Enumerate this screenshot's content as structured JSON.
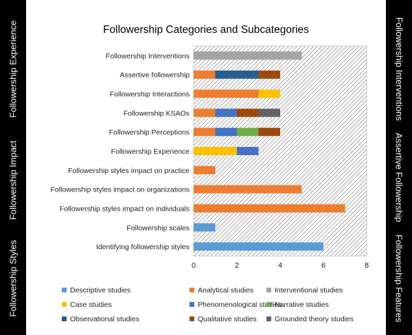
{
  "left_sidebar": {
    "labels": [
      {
        "text": "Followership Experience",
        "center_y": 100
      },
      {
        "text": "Followership Impact",
        "center_y": 262
      },
      {
        "text": "Followership Styles",
        "center_y": 405
      }
    ]
  },
  "right_sidebar": {
    "labels": [
      {
        "text": "Followership Interventions",
        "center_y": 100
      },
      {
        "text": "Assertive Followership",
        "center_y": 258
      },
      {
        "text": "Followership Features",
        "center_y": 405
      }
    ]
  },
  "chart_data": {
    "type": "bar",
    "orientation": "horizontal",
    "stacked": true,
    "title": "Followership Categories and Subcategories",
    "xlabel": "",
    "ylabel": "",
    "xlim": [
      0,
      8
    ],
    "xticks": [
      0,
      2,
      4,
      6,
      8
    ],
    "grid": false,
    "legend_position": "bottom",
    "categories": [
      "Followership Interventions",
      "Assertive followership",
      "Followership Interactions",
      "Followership KSAOs",
      "Followership Perceptions",
      "Followership Experience",
      "Followership styles impact on practice",
      "Followership styles impact on organizations",
      "Followership styles impact on individuals",
      "Followership scales",
      "Identifying followership styles"
    ],
    "series": [
      {
        "name": "Descriptive studies",
        "color": "#5b9bd5",
        "values": [
          0,
          0,
          0,
          0,
          0,
          0,
          0,
          0,
          0,
          1,
          6
        ]
      },
      {
        "name": "Analytical studies",
        "color": "#ed7d31",
        "values": [
          0,
          1,
          3,
          1,
          1,
          0,
          1,
          5,
          7,
          0,
          0
        ]
      },
      {
        "name": "Interventional studies",
        "color": "#a5a5a5",
        "values": [
          5,
          0,
          0,
          0,
          0,
          0,
          0,
          0,
          0,
          0,
          0
        ]
      },
      {
        "name": "Case studies",
        "color": "#ffc000",
        "values": [
          0,
          0,
          1,
          0,
          0,
          2,
          0,
          0,
          0,
          0,
          0
        ]
      },
      {
        "name": "Phenomenological studies",
        "color": "#4472c4",
        "values": [
          0,
          0,
          0,
          1,
          1,
          1,
          0,
          0,
          0,
          0,
          0
        ]
      },
      {
        "name": "Narrative studies",
        "color": "#70ad47",
        "values": [
          0,
          0,
          0,
          0,
          1,
          0,
          0,
          0,
          0,
          0,
          0
        ]
      },
      {
        "name": "Observational studies",
        "color": "#255e91",
        "values": [
          0,
          2,
          0,
          0,
          0,
          0,
          0,
          0,
          0,
          0,
          0
        ]
      },
      {
        "name": "Qualitative studies",
        "color": "#9e480e",
        "values": [
          0,
          1,
          0,
          1,
          1,
          0,
          0,
          0,
          0,
          0,
          0
        ]
      },
      {
        "name": "Grounded theory studies",
        "color": "#636363",
        "values": [
          0,
          0,
          0,
          1,
          0,
          0,
          0,
          0,
          0,
          0,
          0
        ]
      }
    ]
  }
}
